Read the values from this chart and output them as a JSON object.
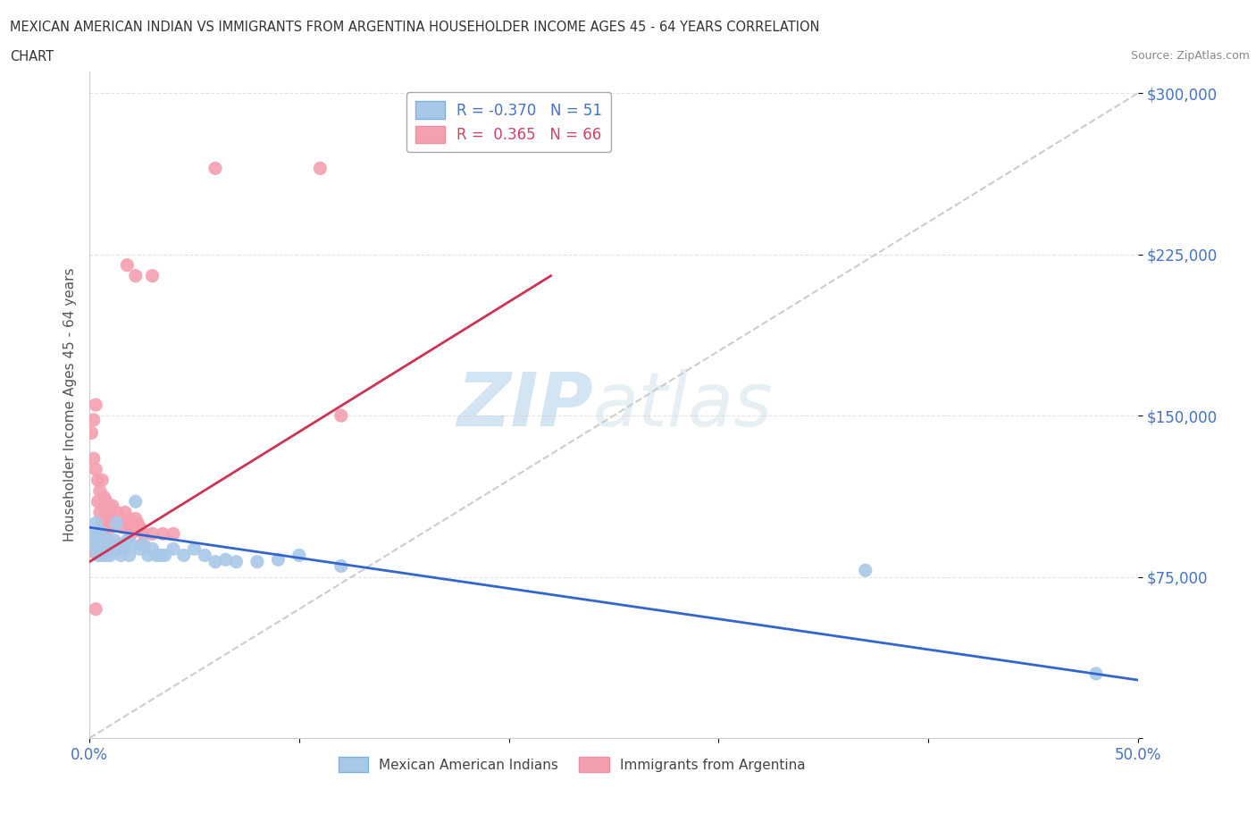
{
  "title_line1": "MEXICAN AMERICAN INDIAN VS IMMIGRANTS FROM ARGENTINA HOUSEHOLDER INCOME AGES 45 - 64 YEARS CORRELATION",
  "title_line2": "CHART",
  "source": "Source: ZipAtlas.com",
  "ylabel_label": "Householder Income Ages 45 - 64 years",
  "blue_R": -0.37,
  "blue_N": 51,
  "pink_R": 0.365,
  "pink_N": 66,
  "blue_color": "#a8c8e8",
  "pink_color": "#f4a0b0",
  "blue_line_color": "#3366cc",
  "pink_line_color": "#cc3355",
  "diagonal_color": "#cccccc",
  "watermark_zip": "ZIP",
  "watermark_atlas": "atlas",
  "legend_blue_label": "Mexican American Indians",
  "legend_pink_label": "Immigrants from Argentina",
  "blue_scatter_x": [
    0.001,
    0.002,
    0.003,
    0.003,
    0.004,
    0.004,
    0.004,
    0.005,
    0.005,
    0.005,
    0.006,
    0.006,
    0.007,
    0.007,
    0.008,
    0.008,
    0.009,
    0.009,
    0.01,
    0.01,
    0.011,
    0.012,
    0.013,
    0.014,
    0.015,
    0.016,
    0.017,
    0.018,
    0.019,
    0.02,
    0.022,
    0.024,
    0.026,
    0.028,
    0.03,
    0.032,
    0.034,
    0.036,
    0.04,
    0.045,
    0.05,
    0.055,
    0.06,
    0.065,
    0.07,
    0.08,
    0.09,
    0.1,
    0.12,
    0.37,
    0.48
  ],
  "blue_scatter_y": [
    95000,
    92000,
    88000,
    100000,
    90000,
    85000,
    95000,
    88000,
    92000,
    96000,
    85000,
    90000,
    88000,
    92000,
    85000,
    90000,
    88000,
    92000,
    85000,
    90000,
    88000,
    92000,
    100000,
    88000,
    85000,
    90000,
    88000,
    92000,
    85000,
    90000,
    110000,
    88000,
    90000,
    85000,
    88000,
    85000,
    85000,
    85000,
    88000,
    85000,
    88000,
    85000,
    82000,
    83000,
    82000,
    82000,
    83000,
    85000,
    80000,
    78000,
    30000
  ],
  "pink_scatter_x": [
    0.001,
    0.002,
    0.002,
    0.003,
    0.003,
    0.004,
    0.004,
    0.005,
    0.005,
    0.006,
    0.006,
    0.007,
    0.007,
    0.007,
    0.008,
    0.008,
    0.009,
    0.009,
    0.01,
    0.01,
    0.011,
    0.011,
    0.012,
    0.013,
    0.014,
    0.015,
    0.016,
    0.017,
    0.018,
    0.019,
    0.02,
    0.02,
    0.021,
    0.022,
    0.023,
    0.024,
    0.026,
    0.03,
    0.035,
    0.04,
    0.018,
    0.022,
    0.03,
    0.06,
    0.11,
    0.12,
    0.003,
    0.025,
    0.012,
    0.008,
    0.006,
    0.005,
    0.004,
    0.003,
    0.007,
    0.009,
    0.013,
    0.015,
    0.004,
    0.006,
    0.008,
    0.01,
    0.014,
    0.005,
    0.007,
    0.011
  ],
  "pink_scatter_y": [
    142000,
    148000,
    130000,
    155000,
    125000,
    120000,
    110000,
    105000,
    115000,
    120000,
    100000,
    108000,
    112000,
    95000,
    105000,
    110000,
    100000,
    108000,
    98000,
    105000,
    102000,
    108000,
    100000,
    105000,
    102000,
    100000,
    98000,
    105000,
    100000,
    102000,
    95000,
    100000,
    98000,
    102000,
    100000,
    98000,
    95000,
    95000,
    95000,
    95000,
    220000,
    215000,
    215000,
    265000,
    265000,
    150000,
    60000,
    90000,
    88000,
    88000,
    88000,
    88000,
    86000,
    86000,
    86000,
    88000,
    88000,
    88000,
    86000,
    88000,
    88000,
    90000,
    90000,
    88000,
    88000,
    90000
  ],
  "xlim": [
    0.0,
    0.5
  ],
  "ylim": [
    0,
    310000
  ],
  "blue_line_x": [
    0.0,
    0.5
  ],
  "blue_line_y": [
    98000,
    27000
  ],
  "pink_line_x": [
    0.0,
    0.22
  ],
  "pink_line_y": [
    82000,
    215000
  ]
}
